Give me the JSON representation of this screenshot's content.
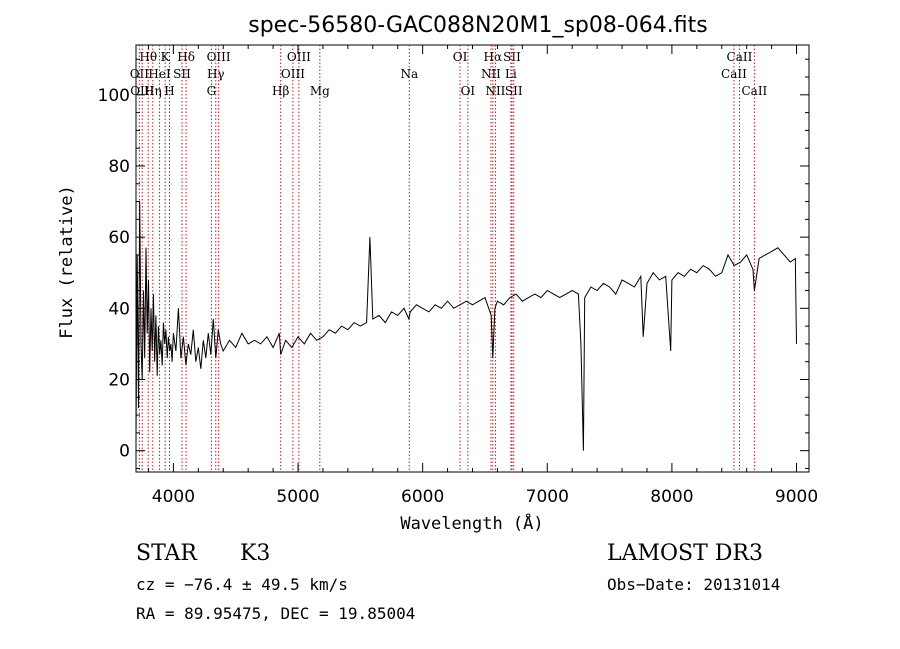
{
  "chart_data": {
    "type": "line",
    "title": "spec-56580-GAC088N20M1_sp08-064.fits",
    "xlabel": "Wavelength (Å)",
    "ylabel": "Flux (relative)",
    "xlim": [
      3700,
      9100
    ],
    "ylim": [
      -6,
      114
    ],
    "x_ticks": [
      4000,
      5000,
      6000,
      7000,
      8000,
      9000
    ],
    "y_ticks": [
      0,
      20,
      40,
      60,
      80,
      100
    ],
    "line_color": "#000000",
    "marker_color": "#b22222",
    "series": [
      {
        "name": "flux",
        "x": [
          3700,
          3710,
          3720,
          3730,
          3740,
          3750,
          3760,
          3770,
          3780,
          3790,
          3800,
          3810,
          3820,
          3830,
          3840,
          3850,
          3860,
          3870,
          3880,
          3890,
          3900,
          3910,
          3920,
          3930,
          3940,
          3950,
          3960,
          3970,
          3980,
          3990,
          4000,
          4020,
          4040,
          4060,
          4080,
          4100,
          4120,
          4140,
          4160,
          4180,
          4200,
          4220,
          4240,
          4260,
          4280,
          4300,
          4320,
          4340,
          4360,
          4380,
          4400,
          4450,
          4500,
          4550,
          4600,
          4650,
          4700,
          4750,
          4800,
          4850,
          4861,
          4900,
          4950,
          5000,
          5050,
          5100,
          5150,
          5200,
          5250,
          5300,
          5350,
          5400,
          5450,
          5500,
          5550,
          5577,
          5600,
          5650,
          5700,
          5750,
          5800,
          5850,
          5890,
          5900,
          5950,
          6000,
          6050,
          6100,
          6150,
          6200,
          6250,
          6300,
          6350,
          6400,
          6450,
          6500,
          6550,
          6563,
          6580,
          6600,
          6650,
          6700,
          6750,
          6800,
          6850,
          6900,
          6950,
          7000,
          7050,
          7100,
          7150,
          7200,
          7250,
          7270,
          7290,
          7300,
          7350,
          7400,
          7450,
          7500,
          7550,
          7600,
          7650,
          7700,
          7750,
          7770,
          7800,
          7850,
          7900,
          7950,
          7990,
          8000,
          8050,
          8100,
          8150,
          8200,
          8250,
          8300,
          8350,
          8400,
          8450,
          8500,
          8550,
          8600,
          8650,
          8662,
          8700,
          8750,
          8800,
          8850,
          8900,
          8950,
          8990,
          9000
        ],
        "y": [
          3,
          55,
          12,
          70,
          30,
          20,
          45,
          26,
          57,
          33,
          48,
          22,
          40,
          28,
          44,
          25,
          38,
          21,
          35,
          27,
          31,
          24,
          36,
          30,
          34,
          26,
          32,
          28,
          30,
          25,
          33,
          28,
          40,
          26,
          32,
          24,
          30,
          27,
          34,
          25,
          29,
          23,
          31,
          26,
          33,
          27,
          37,
          26,
          34,
          30,
          28,
          31,
          29,
          33,
          30,
          31,
          30,
          32,
          29,
          33,
          27,
          31,
          29,
          32,
          30,
          33,
          31,
          32,
          34,
          33,
          35,
          34,
          36,
          35,
          36,
          60,
          37,
          38,
          36,
          39,
          38,
          40,
          37,
          39,
          41,
          40,
          39,
          41,
          40,
          42,
          40,
          41,
          42,
          41,
          42,
          43,
          38,
          26,
          40,
          42,
          41,
          43,
          44,
          42,
          43,
          44,
          43,
          45,
          44,
          43,
          44,
          45,
          44,
          30,
          0,
          43,
          46,
          45,
          47,
          46,
          44,
          48,
          47,
          46,
          49,
          32,
          47,
          50,
          48,
          49,
          28,
          48,
          50,
          49,
          51,
          50,
          52,
          51,
          49,
          50,
          55,
          52,
          53,
          55,
          51,
          45,
          54,
          55,
          56,
          57,
          55,
          53,
          54,
          30
        ]
      }
    ],
    "line_markers": [
      {
        "label": "Hθ",
        "x": 3798,
        "row": 1
      },
      {
        "label": "OII",
        "x": 3727,
        "row": 2
      },
      {
        "label": "OIII",
        "x": 3750,
        "row": 3
      },
      {
        "label": "K",
        "x": 3934,
        "row": 1
      },
      {
        "label": "HeI",
        "x": 3889,
        "row": 2
      },
      {
        "label": "Hη",
        "x": 3835,
        "row": 3
      },
      {
        "label": "Hδ",
        "x": 4102,
        "row": 1
      },
      {
        "label": "SII",
        "x": 4069,
        "row": 2
      },
      {
        "label": "H",
        "x": 3969,
        "row": 3
      },
      {
        "label": "OIII",
        "x": 4363,
        "row": 1
      },
      {
        "label": "Hγ",
        "x": 4340,
        "row": 2
      },
      {
        "label": "G",
        "x": 4305,
        "row": 3
      },
      {
        "label": "OIII",
        "x": 5007,
        "row": 1
      },
      {
        "label": "OIII",
        "x": 4959,
        "row": 2
      },
      {
        "label": "Hβ",
        "x": 4861,
        "row": 3
      },
      {
        "label": "Mg",
        "x": 5175,
        "row": 3
      },
      {
        "label": "Na",
        "x": 5893,
        "row": 2
      },
      {
        "label": "OI",
        "x": 6300,
        "row": 1
      },
      {
        "label": "OI",
        "x": 6363,
        "row": 3
      },
      {
        "label": "Hα",
        "x": 6563,
        "row": 1
      },
      {
        "label": "NII",
        "x": 6548,
        "row": 2
      },
      {
        "label": "NII",
        "x": 6584,
        "row": 3
      },
      {
        "label": "SII",
        "x": 6717,
        "row": 1
      },
      {
        "label": "Li",
        "x": 6708,
        "row": 2
      },
      {
        "label": "SII",
        "x": 6731,
        "row": 3
      },
      {
        "label": "CaII",
        "x": 8542,
        "row": 1
      },
      {
        "label": "CaII",
        "x": 8498,
        "row": 2
      },
      {
        "label": "CaII",
        "x": 8662,
        "row": 3
      }
    ]
  },
  "footer": {
    "class": "STAR",
    "subclass": "K3",
    "survey": "LAMOST DR3",
    "cz": "cz = −76.4 ± 49.5 km/s",
    "obsdate": "Obs−Date: 20131014",
    "radec": "RA =  89.95475, DEC =  19.85004"
  }
}
